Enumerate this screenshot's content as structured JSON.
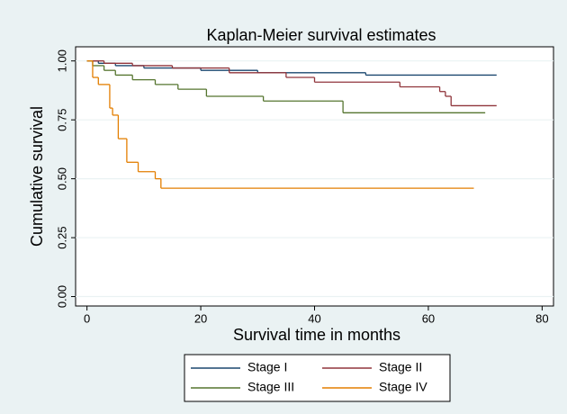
{
  "chart_data": {
    "type": "step",
    "title": "Kaplan-Meier survival estimates",
    "x_label": "Survival time in months",
    "y_label": "Cumulative survival",
    "xlim": [
      -2,
      82
    ],
    "ylim": [
      -0.04,
      1.06
    ],
    "xticks": [
      0,
      20,
      40,
      60,
      80
    ],
    "yticks": [
      {
        "value": 0,
        "label": "0.00"
      },
      {
        "value": 0.25,
        "label": "0.25"
      },
      {
        "value": 0.5,
        "label": "0.50"
      },
      {
        "value": 0.75,
        "label": "0.75"
      },
      {
        "value": 1,
        "label": "1.00"
      }
    ],
    "grid": true,
    "series": [
      {
        "name": "Stage I",
        "color": "#1a476f",
        "x": [
          0,
          2,
          5,
          10,
          20,
          30,
          49,
          72
        ],
        "values": [
          1,
          0.99,
          0.98,
          0.97,
          0.96,
          0.95,
          0.94,
          0.94
        ]
      },
      {
        "name": "Stage II",
        "color": "#90353b",
        "x": [
          0,
          3,
          8,
          15,
          25,
          35,
          40,
          55,
          62,
          63,
          64,
          72
        ],
        "values": [
          1,
          0.99,
          0.98,
          0.97,
          0.95,
          0.93,
          0.91,
          0.89,
          0.87,
          0.85,
          0.81,
          0.81
        ]
      },
      {
        "name": "Stage III",
        "color": "#55752f",
        "x": [
          0,
          1,
          3,
          5,
          8,
          12,
          16,
          21,
          31,
          45,
          70
        ],
        "values": [
          1,
          0.98,
          0.96,
          0.94,
          0.92,
          0.9,
          0.88,
          0.85,
          0.83,
          0.78,
          0.78
        ]
      },
      {
        "name": "Stage IV",
        "color": "#e37e00",
        "x": [
          0,
          1,
          2,
          4,
          4.5,
          5.5,
          7,
          9,
          12,
          13,
          68
        ],
        "values": [
          1,
          0.93,
          0.9,
          0.8,
          0.77,
          0.67,
          0.57,
          0.53,
          0.5,
          0.46,
          0.46
        ]
      }
    ]
  }
}
